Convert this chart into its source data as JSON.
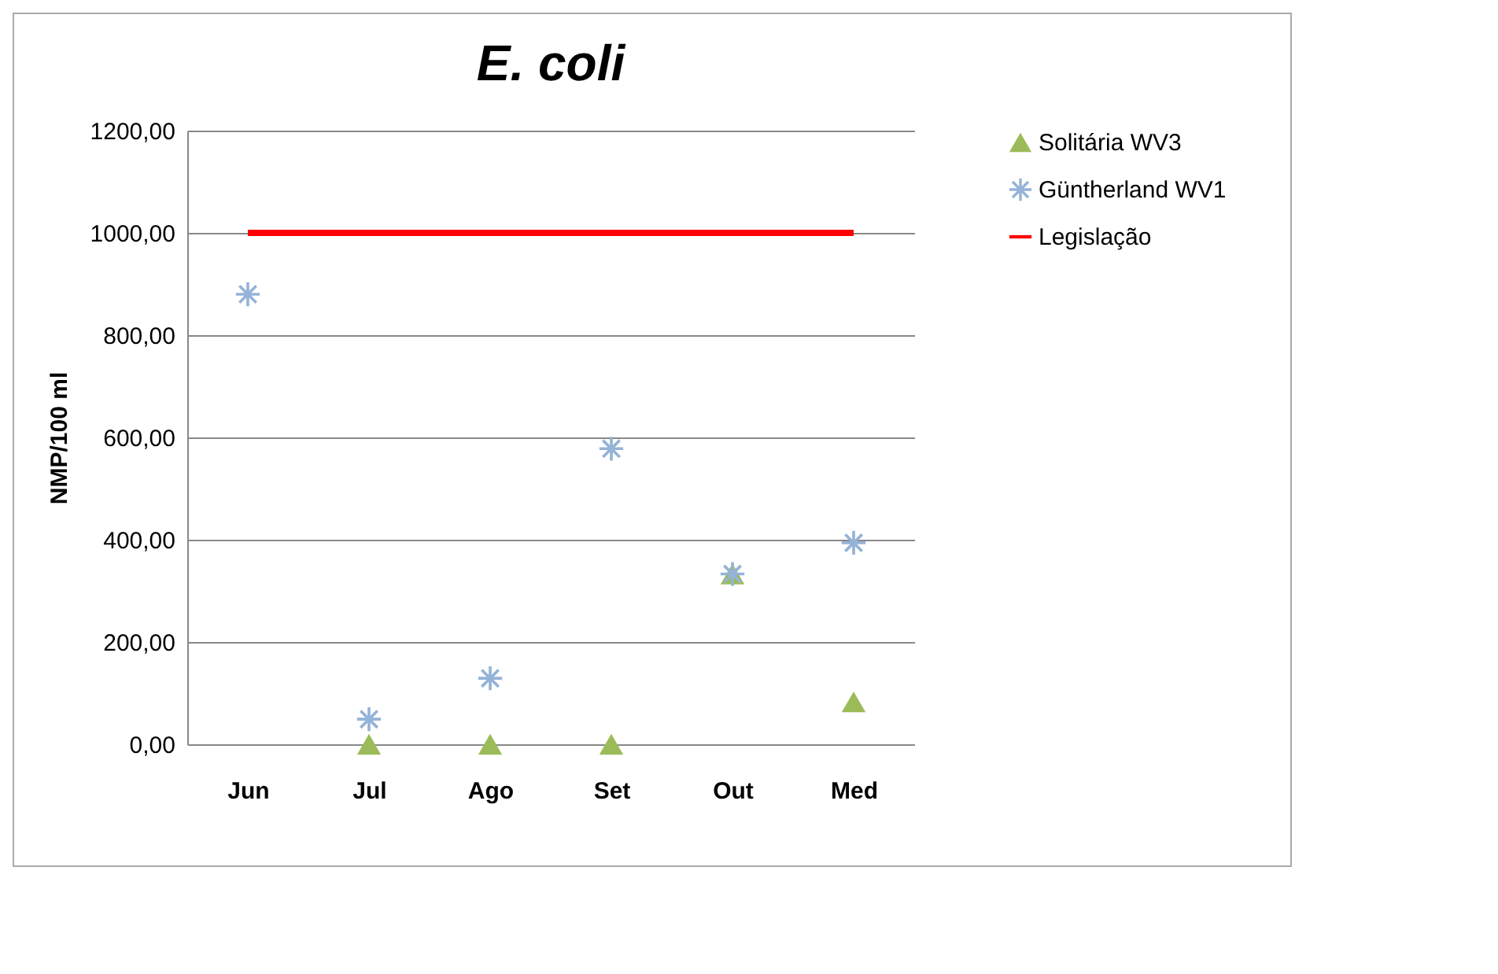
{
  "chart_data": {
    "type": "scatter",
    "title": "E. coli",
    "ylabel": "NMP/100 ml",
    "categories": [
      "Jun",
      "Jul",
      "Ago",
      "Set",
      "Out",
      "Med"
    ],
    "series": [
      {
        "name": "Solitária WV3",
        "marker": "triangle",
        "color": "#9bbb59",
        "values": [
          null,
          0,
          0,
          0,
          333,
          83
        ]
      },
      {
        "name": "Güntherland WV1",
        "marker": "cross",
        "color": "#95b3d7",
        "values": [
          880,
          49,
          129,
          578,
          333,
          394
        ]
      },
      {
        "name": "Legislação",
        "type": "line",
        "color": "#ff0000",
        "values": [
          1000,
          1000,
          1000,
          1000,
          1000,
          1000
        ]
      }
    ],
    "ylim": [
      0,
      1200
    ],
    "yticks": [
      {
        "value": 0,
        "label": "0,00"
      },
      {
        "value": 200,
        "label": "200,00"
      },
      {
        "value": 400,
        "label": "400,00"
      },
      {
        "value": 600,
        "label": "600,00"
      },
      {
        "value": 800,
        "label": "800,00"
      },
      {
        "value": 1000,
        "label": "1000,00"
      },
      {
        "value": 1200,
        "label": "1200,00"
      }
    ],
    "grid": "y",
    "legend": "right"
  }
}
